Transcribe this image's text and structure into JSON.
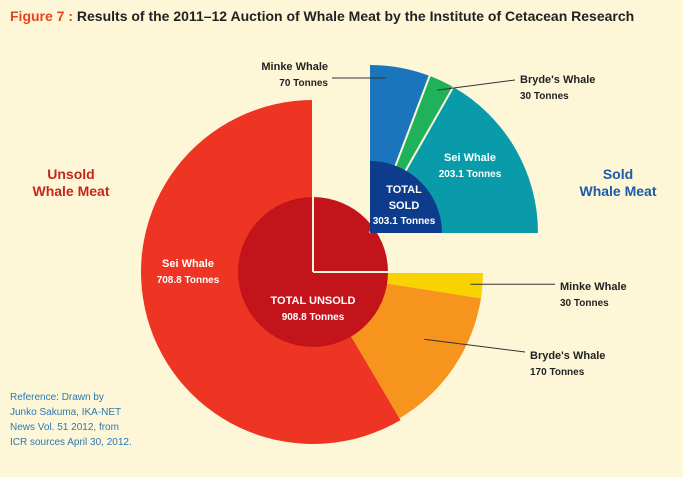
{
  "title": {
    "figure": "Figure 7 :",
    "text": "Results of the 2011–12 Auction of Whale Meat by the Institute of Cetacean Research"
  },
  "labels": {
    "unsold_line1": "Unsold",
    "unsold_line2": "Whale Meat",
    "sold_line1": "Sold",
    "sold_line2": "Whale Meat"
  },
  "reference": {
    "line1": "Reference: Drawn by",
    "line2": "Junko Sakuma, IKA-NET",
    "line3": "News Vol. 51 2012, from",
    "line4": "ICR sources April 30, 2012."
  },
  "chart_data": [
    {
      "type": "pie",
      "group": "Unsold Whale Meat",
      "total_label": "TOTAL UNSOLD",
      "total_value": "908.8 Tonnes",
      "slices": [
        {
          "name": "Sei Whale",
          "value": 708.8,
          "value_label": "708.8 Tonnes",
          "color": "#ee3524"
        },
        {
          "name": "Minke Whale",
          "value": 30,
          "value_label": "30 Tonnes",
          "color": "#f8d300"
        },
        {
          "name": "Bryde's Whale",
          "value": 170,
          "value_label": "170 Tonnes",
          "color": "#f7941d"
        }
      ]
    },
    {
      "type": "pie",
      "group": "Sold Whale Meat",
      "total_label_line1": "TOTAL",
      "total_label_line2": "SOLD",
      "total_value": "303.1 Tonnes",
      "slices": [
        {
          "name": "Minke Whale",
          "value": 70,
          "value_label": "70 Tonnes",
          "color": "#1a75bc"
        },
        {
          "name": "Bryde's Whale",
          "value": 30,
          "value_label": "30 Tonnes",
          "color": "#1fb25a"
        },
        {
          "name": "Sei Whale",
          "value": 203.1,
          "value_label": "203.1 Tonnes",
          "color": "#0a9bab"
        }
      ]
    }
  ],
  "colors": {
    "unsold_center": "#c4141b",
    "sold_center": "#0e3c8c",
    "leader": "#333333"
  }
}
